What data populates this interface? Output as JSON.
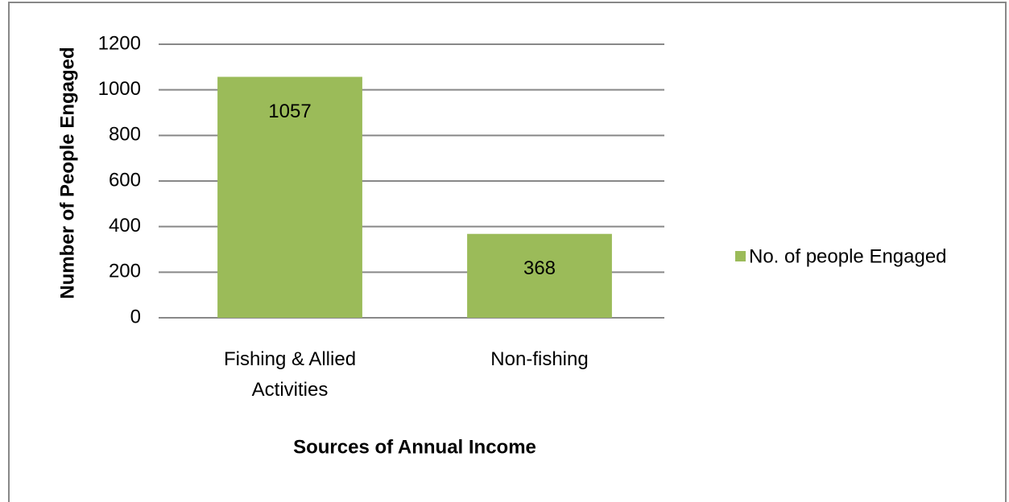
{
  "chart_data": {
    "type": "bar",
    "x_label": "Sources of Annual Income",
    "y_label": "Number of People Engaged",
    "categories": [
      "Fishing & Allied Activities",
      "Non-fishing"
    ],
    "series": [
      {
        "name": "No. of people Engaged",
        "color": "#9bbb59",
        "values": [
          1057,
          368
        ]
      }
    ],
    "ylim": [
      0,
      1200
    ],
    "yticks": [
      0,
      200,
      400,
      600,
      800,
      1000,
      1200
    ],
    "grid": true,
    "legend": "right"
  }
}
